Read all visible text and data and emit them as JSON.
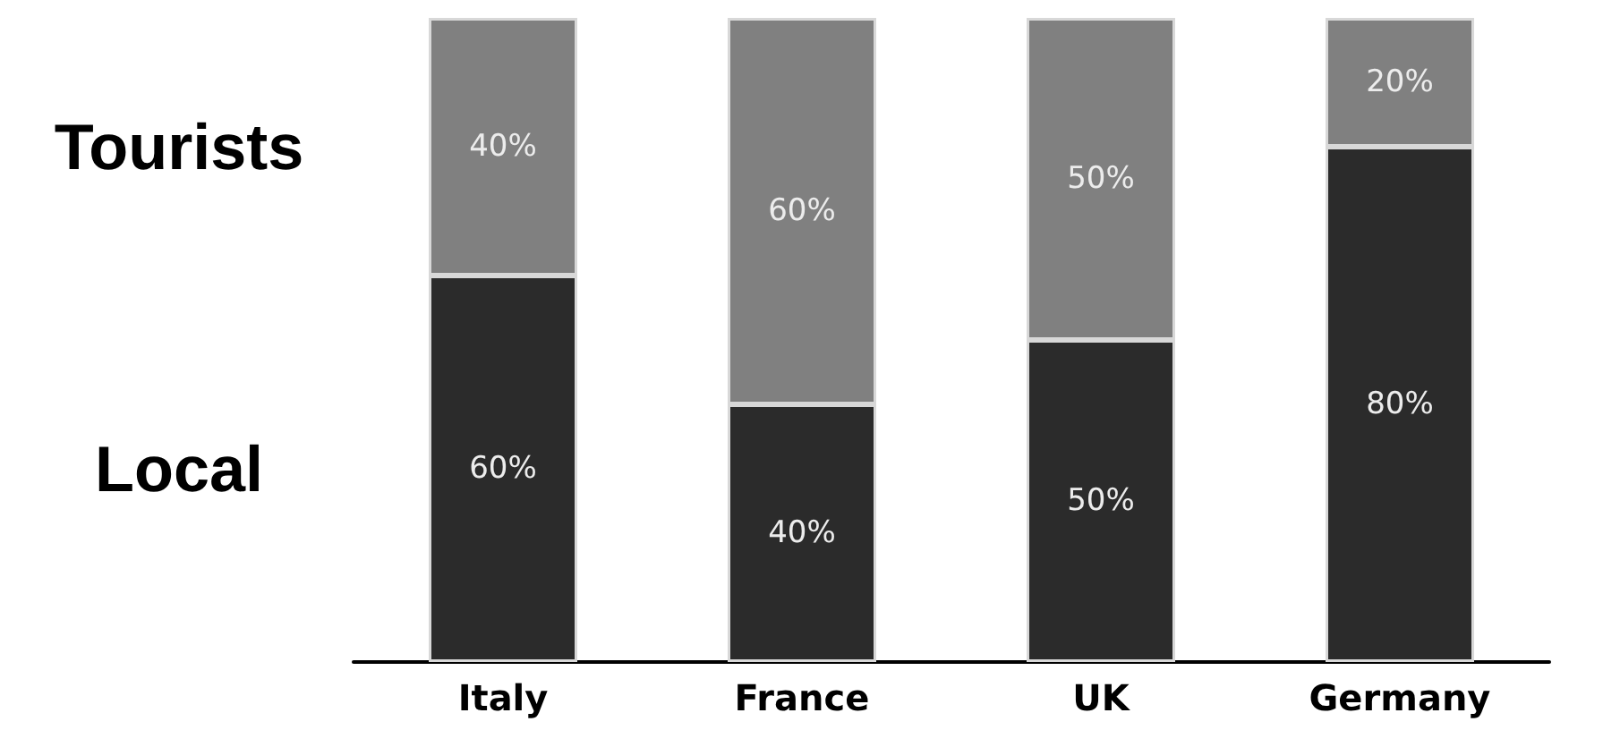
{
  "chart_data": {
    "type": "bar",
    "stacked": true,
    "categories": [
      "Italy",
      "France",
      "UK",
      "Germany"
    ],
    "series": [
      {
        "name": "Local",
        "color": "#2b2b2b",
        "values": [
          60,
          40,
          50,
          80
        ],
        "value_labels": [
          "60%",
          "40%",
          "50%",
          "80%"
        ]
      },
      {
        "name": "Tourists",
        "color": "#808080",
        "values": [
          40,
          60,
          50,
          20
        ],
        "value_labels": [
          "40%",
          "60%",
          "50%",
          "20%"
        ]
      }
    ],
    "ylim": [
      0,
      100
    ],
    "tick_labels": "x"
  }
}
